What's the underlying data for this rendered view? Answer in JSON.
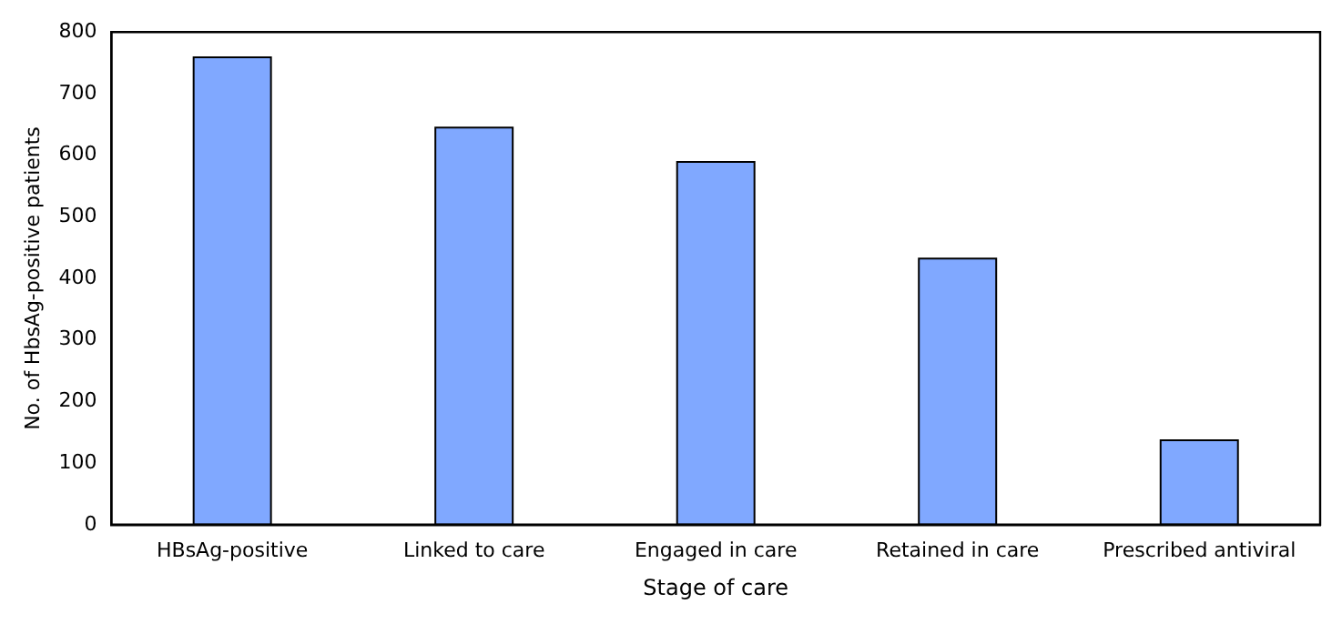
{
  "chart_data": {
    "type": "bar",
    "xlabel": "Stage of care",
    "ylabel": "No. of HbsAg-positive patients",
    "categories": [
      "HBsAg-positive",
      "Linked to care",
      "Engaged in care",
      "Retained in care",
      "Prescribed antiviral"
    ],
    "values": [
      759,
      645,
      589,
      432,
      137
    ],
    "color": "#80a8ff",
    "ylim": [
      0,
      800
    ],
    "yticks": [
      0,
      100,
      200,
      300,
      400,
      500,
      600,
      700,
      800
    ],
    "grid": false,
    "legend": false
  }
}
